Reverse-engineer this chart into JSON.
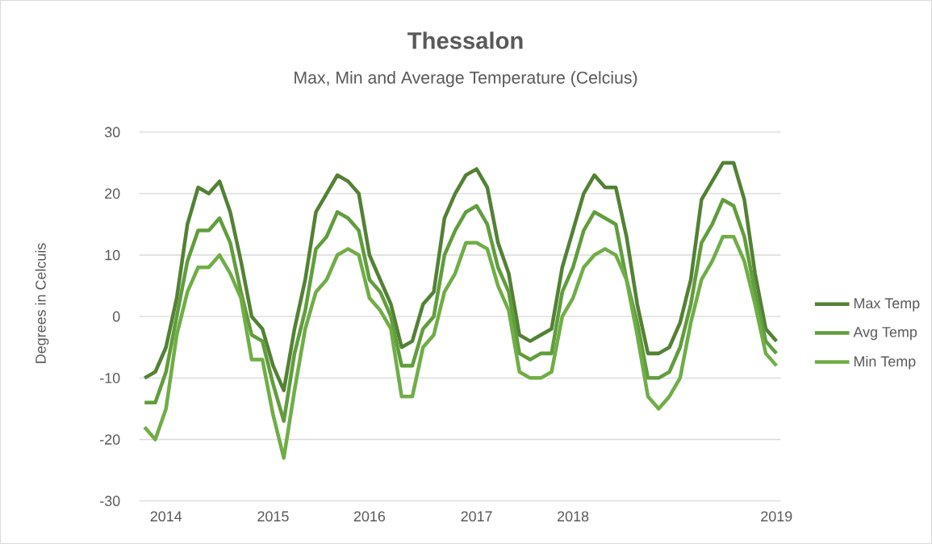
{
  "chart_data": {
    "type": "line",
    "title": "Thessalon",
    "subtitle": "Max, Min and Average Temperature (Celcius)",
    "ylabel": "Degrees in Celcuis",
    "categories": [
      null,
      null,
      "2014",
      null,
      null,
      null,
      null,
      null,
      null,
      null,
      null,
      null,
      "2015",
      null,
      null,
      null,
      null,
      null,
      null,
      null,
      null,
      "2016",
      null,
      null,
      null,
      null,
      null,
      null,
      null,
      null,
      null,
      "2017",
      null,
      null,
      null,
      null,
      null,
      null,
      null,
      null,
      "2018",
      null,
      null,
      null,
      null,
      null,
      null,
      null,
      null,
      null,
      null,
      null,
      null,
      null,
      null,
      null,
      null,
      null,
      null,
      "2019"
    ],
    "ylim": [
      -30,
      30
    ],
    "yticks": [
      -30,
      -20,
      -10,
      0,
      10,
      20,
      30
    ],
    "grid": "y",
    "legend": "right",
    "marker": "none",
    "line_style": "solid",
    "series": [
      {
        "name": "Max Temp",
        "color": "#538135",
        "values": [
          -10,
          -9,
          -5,
          3,
          15,
          21,
          20,
          22,
          17,
          9,
          0,
          -2,
          -8,
          -12,
          -2,
          6,
          17,
          20,
          23,
          22,
          20,
          10,
          6,
          2,
          -5,
          -4,
          2,
          4,
          16,
          20,
          23,
          24,
          21,
          12,
          7,
          -3,
          -4,
          -3,
          -2,
          8,
          14,
          20,
          23,
          21,
          21,
          13,
          2,
          -6,
          -6,
          -5,
          -1,
          6,
          19,
          22,
          25,
          25,
          19,
          7,
          -2,
          -4
        ]
      },
      {
        "name": "Avg Temp",
        "color": "#609d3c",
        "values": [
          -14,
          -14,
          -9,
          0,
          9,
          14,
          14,
          16,
          12,
          4,
          -3,
          -4,
          -11,
          -17,
          -6,
          1,
          11,
          13,
          17,
          16,
          14,
          6,
          4,
          0,
          -8,
          -8,
          -2,
          0,
          10,
          14,
          17,
          18,
          15,
          8,
          4,
          -6,
          -7,
          -6,
          -6,
          4,
          8,
          14,
          17,
          16,
          15,
          6,
          -1,
          -10,
          -10,
          -9,
          -5,
          2,
          12,
          15,
          19,
          18,
          13,
          4,
          -4,
          -6
        ]
      },
      {
        "name": "Min Temp",
        "color": "#70ad47",
        "values": [
          -18,
          -20,
          -15,
          -3,
          4,
          8,
          8,
          10,
          7,
          3,
          -7,
          -7,
          -16,
          -23,
          -12,
          -2,
          4,
          6,
          10,
          11,
          10,
          3,
          1,
          -2,
          -13,
          -13,
          -5,
          -3,
          4,
          7,
          12,
          12,
          11,
          5,
          1,
          -9,
          -10,
          -10,
          -9,
          0,
          3,
          8,
          10,
          11,
          10,
          6,
          -3,
          -13,
          -15,
          -13,
          -10,
          -1,
          6,
          9,
          13,
          13,
          9,
          2,
          -6,
          -8
        ]
      }
    ]
  }
}
